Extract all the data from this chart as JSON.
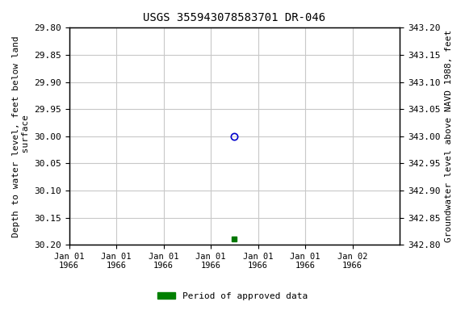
{
  "title": "USGS 355943078583701 DR-046",
  "title_fontsize": 10,
  "ylabel_left": "Depth to water level, feet below land\n surface",
  "ylabel_right": "Groundwater level above NAVD 1988, feet",
  "ylim_left": [
    29.8,
    30.2
  ],
  "ylim_right": [
    342.8,
    343.2
  ],
  "yticks_left": [
    29.8,
    29.85,
    29.9,
    29.95,
    30.0,
    30.05,
    30.1,
    30.15,
    30.2
  ],
  "yticks_right": [
    342.8,
    342.85,
    342.9,
    342.95,
    343.0,
    343.05,
    343.1,
    343.15,
    343.2
  ],
  "data_point1_x": 3.5,
  "data_point1_y": 30.0,
  "data_point1_color": "#0000cc",
  "data_point1_marker": "o",
  "data_point2_x": 3.5,
  "data_point2_y": 30.19,
  "data_point2_color": "#007700",
  "data_point2_marker": "s",
  "xlim": [
    0,
    7
  ],
  "xtick_positions": [
    0,
    1,
    2,
    3,
    4,
    5,
    6
  ],
  "xtick_labels": [
    "Jan 01\n1966",
    "Jan 01\n1966",
    "Jan 01\n1966",
    "Jan 01\n1966",
    "Jan 01\n1966",
    "Jan 01\n1966",
    "Jan 02\n1966"
  ],
  "grid_color": "#c8c8c8",
  "background_color": "#ffffff",
  "legend_label": "Period of approved data",
  "legend_color": "#008000",
  "ylabel_fontsize": 8,
  "tick_fontsize": 8,
  "xtick_fontsize": 7.5
}
